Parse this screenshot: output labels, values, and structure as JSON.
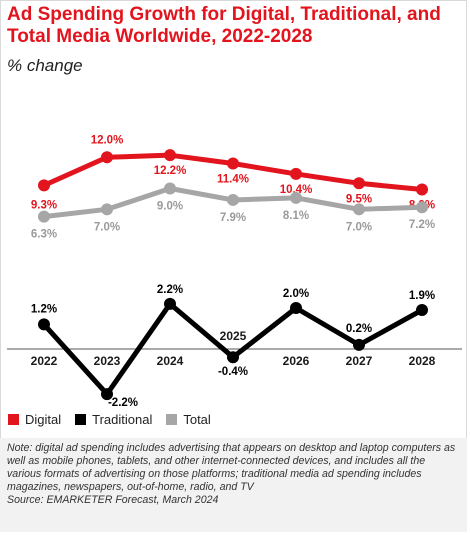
{
  "header": {
    "title": "Ad Spending Growth for Digital, Traditional, and Total Media Worldwide, 2022-2028",
    "subtitle": "% change"
  },
  "chart_data": {
    "type": "line",
    "title": "Ad Spending Growth for Digital, Traditional, and Total Media Worldwide, 2022-2028",
    "subtitle": "% change",
    "x": [
      "2022",
      "2023",
      "2024",
      "2025",
      "2026",
      "2027",
      "2028"
    ],
    "series": [
      {
        "name": "Digital",
        "color": "#e2141d",
        "values": [
          9.3,
          12.0,
          12.2,
          11.4,
          10.4,
          9.5,
          8.9
        ],
        "labels": [
          "9.3%",
          "12.0%",
          "12.2%",
          "11.4%",
          "10.4%",
          "9.5%",
          "8.9%"
        ]
      },
      {
        "name": "Total",
        "color": "#a6a6a6",
        "values": [
          6.3,
          7.0,
          9.0,
          7.9,
          8.1,
          7.0,
          7.2
        ],
        "labels": [
          "6.3%",
          "7.0%",
          "9.0%",
          "7.9%",
          "8.1%",
          "7.0%",
          "7.2%"
        ]
      },
      {
        "name": "Traditional",
        "color": "#000000",
        "values": [
          1.2,
          -2.2,
          2.2,
          -0.4,
          2.0,
          0.2,
          1.9
        ],
        "labels": [
          "1.2%",
          "-2.2%",
          "2.2%",
          "-0.4%",
          "2.0%",
          "0.2%",
          "1.9%"
        ]
      }
    ],
    "legend": [
      "Digital",
      "Traditional",
      "Total"
    ],
    "legend_position": "bottom-left",
    "grid": false
  },
  "legend": {
    "digital": "Digital",
    "traditional": "Traditional",
    "total": "Total"
  },
  "footnote": {
    "note": "Note: digital ad spending includes advertising that appears on desktop and laptop computers as well as mobile phones, tablets, and other internet-connected devices, and includes all the various formats of advertising on those platforms; traditional media ad spending includes magazines, newspapers, out-of-home, radio, and TV",
    "source": "Source: EMARKETER Forecast, March 2024"
  },
  "colors": {
    "digital": "#e2141d",
    "traditional": "#000000",
    "total": "#a6a6a6"
  }
}
